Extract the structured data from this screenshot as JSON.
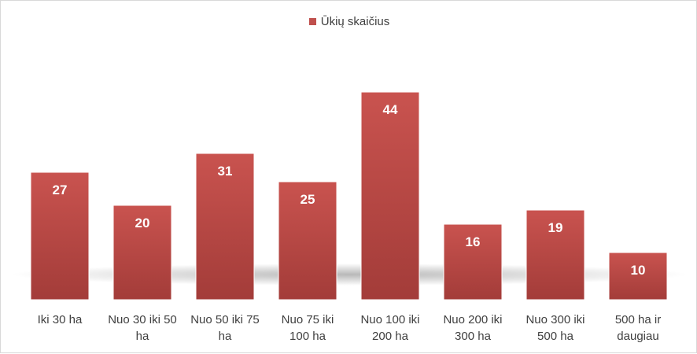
{
  "chart_data": {
    "type": "bar",
    "title": "",
    "xlabel": "",
    "ylabel": "",
    "categories": [
      [
        "Iki 30 ha"
      ],
      [
        "Nuo 30 iki 50",
        "ha"
      ],
      [
        "Nuo 50 iki 75",
        "ha"
      ],
      [
        "Nuo 75 iki",
        "100 ha"
      ],
      [
        "Nuo 100 iki",
        "200 ha"
      ],
      [
        "Nuo 200 iki",
        "300 ha"
      ],
      [
        "Nuo 300 iki",
        "500 ha"
      ],
      [
        "500 ha ir",
        "daugiau"
      ]
    ],
    "series": [
      {
        "name": "Ūkių skaičius",
        "values": [
          27,
          20,
          31,
          25,
          44,
          16,
          19,
          10
        ]
      }
    ],
    "ylim": [
      0,
      50
    ],
    "grid": false,
    "data_labels": true,
    "legend_position": "top",
    "colors": {
      "bar": "#c0504d",
      "bar_dark": "#a33f3c",
      "label_text": "#ffffff",
      "axis_text": "#404040"
    }
  }
}
